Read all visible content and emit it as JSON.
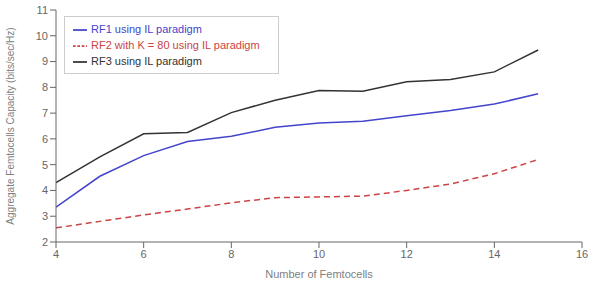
{
  "chart_data": {
    "type": "line",
    "xlabel": "Number of Femtocells",
    "ylabel": "Aggregate Femtocells Capacity (bits/sec/Hz)",
    "x": [
      4,
      5,
      6,
      7,
      8,
      9,
      10,
      11,
      12,
      13,
      14,
      15
    ],
    "series": [
      {
        "name": "RF1 using IL paradigm",
        "color": "#4444cc",
        "line_style": "solid",
        "values": [
          3.35,
          4.55,
          5.35,
          5.9,
          6.1,
          6.45,
          6.62,
          6.68,
          6.9,
          7.1,
          7.35,
          7.75
        ]
      },
      {
        "name": "RF2 with K = 80 using IL paradigm",
        "color": "#cc4444",
        "line_style": "dashed",
        "values": [
          2.55,
          2.8,
          3.05,
          3.28,
          3.52,
          3.72,
          3.75,
          3.78,
          4.0,
          4.25,
          4.65,
          5.2
        ]
      },
      {
        "name": "RF3 using IL paradigm",
        "color": "#333333",
        "line_style": "solid",
        "values": [
          4.3,
          5.3,
          6.2,
          6.25,
          7.02,
          7.5,
          7.88,
          7.85,
          8.22,
          8.3,
          8.6,
          9.45
        ]
      }
    ],
    "xlim": [
      4,
      16
    ],
    "ylim": [
      2,
      11
    ],
    "xticks": [
      4,
      6,
      8,
      10,
      12,
      14,
      16
    ],
    "yticks": [
      2,
      3,
      4,
      5,
      6,
      7,
      8,
      9,
      10,
      11
    ],
    "legend": "upper left",
    "grid": false
  }
}
